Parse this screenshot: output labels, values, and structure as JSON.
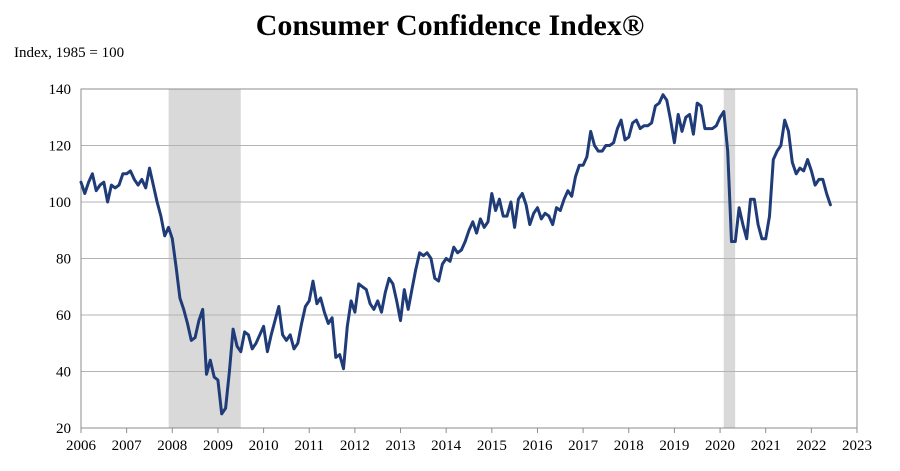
{
  "chart_data": {
    "type": "line",
    "title": "Consumer Confidence Index®",
    "ylabel": "Index, 1985 = 100",
    "xlabel": "",
    "xlim": [
      2006,
      2023
    ],
    "ylim": [
      20,
      140
    ],
    "x_ticks": [
      2006,
      2007,
      2008,
      2009,
      2010,
      2011,
      2012,
      2013,
      2014,
      2015,
      2016,
      2017,
      2018,
      2019,
      2020,
      2021,
      2022,
      2023
    ],
    "y_ticks": [
      20,
      40,
      60,
      80,
      100,
      120,
      140
    ],
    "grid": true,
    "line_color": "#1f3c78",
    "recession_color": "#d9d9d9",
    "recessions": [
      [
        2007.92,
        2009.5
      ],
      [
        2020.08,
        2020.33
      ]
    ],
    "series": [
      {
        "x": [
          2006.0,
          2006.083,
          2006.167,
          2006.25,
          2006.333,
          2006.417,
          2006.5,
          2006.583,
          2006.667,
          2006.75,
          2006.833,
          2006.917,
          2007.0,
          2007.083,
          2007.167,
          2007.25,
          2007.333,
          2007.417,
          2007.5,
          2007.583,
          2007.667,
          2007.75,
          2007.833,
          2007.917,
          2008.0,
          2008.083,
          2008.167,
          2008.25,
          2008.333,
          2008.417,
          2008.5,
          2008.583,
          2008.667,
          2008.75,
          2008.833,
          2008.917,
          2009.0,
          2009.083,
          2009.167,
          2009.25,
          2009.333,
          2009.417,
          2009.5,
          2009.583,
          2009.667,
          2009.75,
          2009.833,
          2009.917,
          2010.0,
          2010.083,
          2010.167,
          2010.25,
          2010.333,
          2010.417,
          2010.5,
          2010.583,
          2010.667,
          2010.75,
          2010.833,
          2010.917,
          2011.0,
          2011.083,
          2011.167,
          2011.25,
          2011.333,
          2011.417,
          2011.5,
          2011.583,
          2011.667,
          2011.75,
          2011.833,
          2011.917,
          2012.0,
          2012.083,
          2012.167,
          2012.25,
          2012.333,
          2012.417,
          2012.5,
          2012.583,
          2012.667,
          2012.75,
          2012.833,
          2012.917,
          2013.0,
          2013.083,
          2013.167,
          2013.25,
          2013.333,
          2013.417,
          2013.5,
          2013.583,
          2013.667,
          2013.75,
          2013.833,
          2013.917,
          2014.0,
          2014.083,
          2014.167,
          2014.25,
          2014.333,
          2014.417,
          2014.5,
          2014.583,
          2014.667,
          2014.75,
          2014.833,
          2014.917,
          2015.0,
          2015.083,
          2015.167,
          2015.25,
          2015.333,
          2015.417,
          2015.5,
          2015.583,
          2015.667,
          2015.75,
          2015.833,
          2015.917,
          2016.0,
          2016.083,
          2016.167,
          2016.25,
          2016.333,
          2016.417,
          2016.5,
          2016.583,
          2016.667,
          2016.75,
          2016.833,
          2016.917,
          2017.0,
          2017.083,
          2017.167,
          2017.25,
          2017.333,
          2017.417,
          2017.5,
          2017.583,
          2017.667,
          2017.75,
          2017.833,
          2017.917,
          2018.0,
          2018.083,
          2018.167,
          2018.25,
          2018.333,
          2018.417,
          2018.5,
          2018.583,
          2018.667,
          2018.75,
          2018.833,
          2018.917,
          2019.0,
          2019.083,
          2019.167,
          2019.25,
          2019.333,
          2019.417,
          2019.5,
          2019.583,
          2019.667,
          2019.75,
          2019.833,
          2019.917,
          2020.0,
          2020.083,
          2020.167,
          2020.25,
          2020.333,
          2020.417,
          2020.5,
          2020.583,
          2020.667,
          2020.75,
          2020.833,
          2020.917,
          2021.0,
          2021.083,
          2021.167,
          2021.25,
          2021.333,
          2021.417,
          2021.5,
          2021.583,
          2021.667,
          2021.75,
          2021.833,
          2021.917,
          2022.0,
          2022.083,
          2022.167,
          2022.25,
          2022.333,
          2022.417
        ],
        "values": [
          107,
          103,
          107,
          110,
          104,
          106,
          107,
          100,
          106,
          105,
          106,
          110,
          110,
          111,
          108,
          106,
          108,
          105,
          112,
          106,
          100,
          95,
          88,
          91,
          87,
          77,
          66,
          62,
          57,
          51,
          52,
          58,
          62,
          39,
          44,
          38,
          37,
          25,
          27,
          40,
          55,
          49,
          47,
          54,
          53,
          48,
          50,
          53,
          56,
          47,
          53,
          58,
          63,
          53,
          51,
          53,
          48,
          50,
          57,
          63,
          65,
          72,
          64,
          66,
          61,
          57,
          59,
          45,
          46,
          41,
          56,
          65,
          61,
          71,
          70,
          69,
          64,
          62,
          65,
          61,
          68,
          73,
          71,
          65,
          58,
          69,
          62,
          69,
          76,
          82,
          81,
          82,
          80,
          73,
          72,
          78,
          80,
          79,
          84,
          82,
          83,
          86,
          90,
          93,
          89,
          94,
          91,
          93,
          103,
          97,
          101,
          95,
          95,
          100,
          91,
          101,
          103,
          99,
          92,
          96,
          98,
          94,
          96,
          95,
          92,
          98,
          97,
          101,
          104,
          102,
          109,
          113,
          113,
          116,
          125,
          120,
          118,
          118,
          120,
          120,
          121,
          126,
          129,
          122,
          123,
          128,
          129,
          126,
          127,
          127,
          128,
          134,
          135,
          138,
          136,
          129,
          121,
          131,
          125,
          130,
          131,
          124,
          135,
          134,
          126,
          126,
          126,
          127,
          130,
          132,
          118,
          86,
          86,
          98,
          92,
          87,
          101,
          101,
          92,
          87,
          87,
          95,
          115,
          118,
          120,
          129,
          125,
          114,
          110,
          112,
          111,
          115,
          111,
          106,
          108,
          108,
          103,
          99
        ]
      }
    ]
  }
}
